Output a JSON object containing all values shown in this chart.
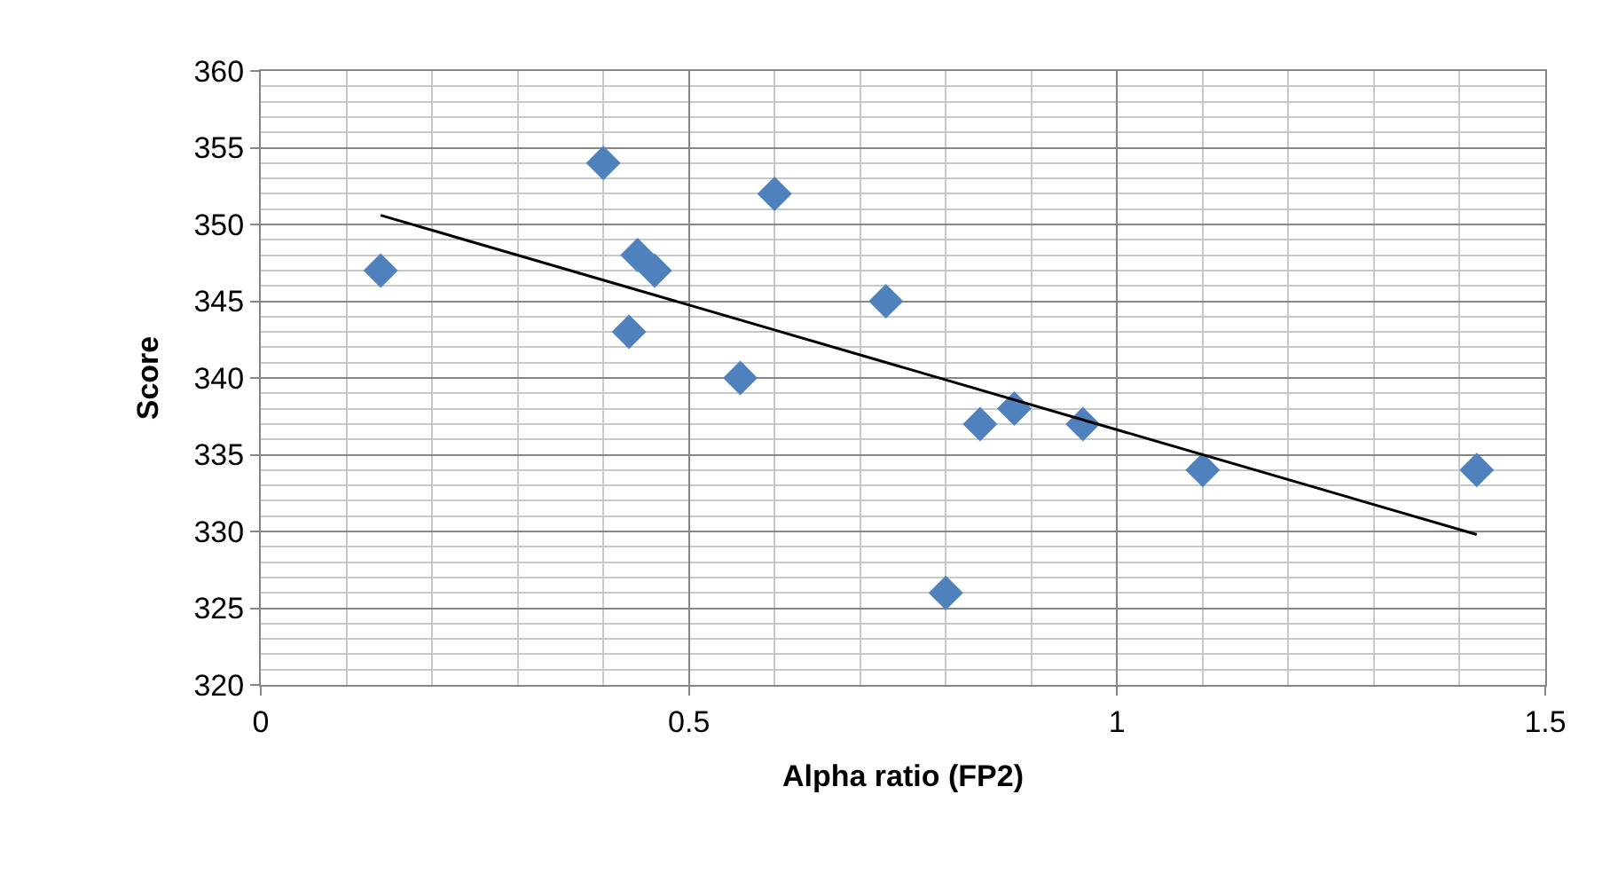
{
  "chart_data": {
    "type": "scatter",
    "xlabel": "Alpha ratio (FP2)",
    "ylabel": "Score",
    "xlim": [
      0,
      1.5
    ],
    "xticks": [
      0,
      0.5,
      1,
      1.5
    ],
    "ylim": [
      320,
      360
    ],
    "yticks": [
      320,
      325,
      330,
      335,
      340,
      345,
      350,
      355,
      360
    ],
    "grid": true,
    "series": [
      {
        "color": "#4f81bd",
        "marker": "diamond",
        "x": [
          0.14,
          0.4,
          0.44,
          0.46,
          0.43,
          0.56,
          0.6,
          0.73,
          0.84,
          0.88,
          0.96,
          0.8,
          1.1,
          1.42
        ],
        "values": [
          347,
          354,
          348,
          347,
          343,
          340,
          352,
          345,
          337,
          338,
          337,
          326,
          334,
          334
        ]
      },
      {
        "type": "line",
        "color": "#000000",
        "marker": "none",
        "line_style": "solid",
        "x": [
          0.14,
          1.42
        ],
        "values": [
          350.6,
          329.8
        ]
      }
    ]
  }
}
